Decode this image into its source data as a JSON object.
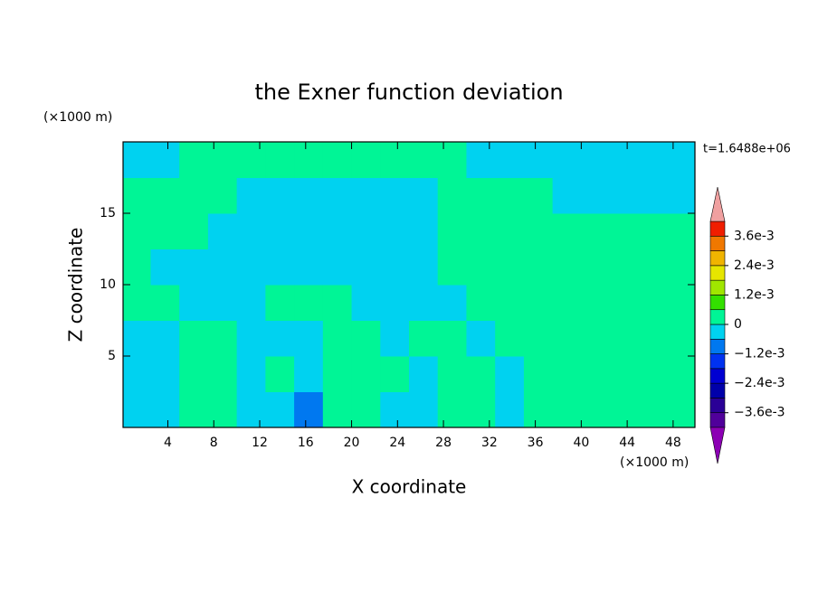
{
  "chart_data": {
    "type": "contour",
    "title": "the Exner function deviation",
    "x_label": "X coordinate",
    "y_label": "Z coordinate",
    "x_unit": "(×1000 m)",
    "y_unit": "(×1000 m)",
    "time_label": "t=1.6488e+06",
    "xlim": [
      0.1,
      49.9
    ],
    "ylim": [
      0,
      20
    ],
    "xticks": [
      4,
      8,
      12,
      16,
      20,
      24,
      28,
      32,
      36,
      40,
      44,
      48
    ],
    "yticks": [
      5,
      10,
      15
    ],
    "x": [
      1.25,
      3.75,
      6.25,
      8.75,
      11.25,
      13.75,
      16.25,
      18.75,
      21.25,
      23.75,
      26.25,
      28.75,
      31.25,
      33.75,
      36.25,
      38.75,
      41.25,
      43.75,
      46.25,
      48.75
    ],
    "z": [
      1.25,
      3.75,
      6.25,
      8.75,
      11.25,
      13.75,
      16.25,
      18.75
    ],
    "values": [
      [
        -0.0003,
        -0.0003,
        0.0003,
        0.0003,
        -0.0003,
        -0.0003,
        -0.0009,
        0.0003,
        0.0003,
        -0.0003,
        -0.0003,
        0.0003,
        0.0003,
        -0.0003,
        0.0003,
        0.0003,
        0.0003,
        0.0003,
        0.0003,
        0.0003
      ],
      [
        -0.0003,
        -0.0003,
        0.0003,
        0.0003,
        -0.0003,
        0.0003,
        -0.0003,
        0.0003,
        0.0003,
        0.0003,
        -0.0003,
        0.0003,
        0.0003,
        -0.0003,
        0.0003,
        0.0003,
        0.0003,
        0.0003,
        0.0003,
        0.0003
      ],
      [
        -0.0003,
        -0.0003,
        0.0003,
        0.0003,
        -0.0003,
        -0.0003,
        -0.0003,
        0.0003,
        0.0003,
        -0.0003,
        0.0003,
        0.0003,
        -0.0003,
        0.0003,
        0.0003,
        0.0003,
        0.0003,
        0.0003,
        0.0003,
        0.0003
      ],
      [
        0.0003,
        0.0003,
        -0.0003,
        -0.0003,
        -0.0003,
        0.0003,
        0.0003,
        0.0003,
        -0.0003,
        -0.0003,
        -0.0003,
        -0.0003,
        0.0003,
        0.0003,
        0.0003,
        0.0003,
        0.0003,
        0.0003,
        0.0003,
        0.0003
      ],
      [
        0.0003,
        -0.0003,
        -0.0003,
        -0.0003,
        -0.0003,
        -0.0003,
        -0.0003,
        -0.0003,
        -0.0003,
        -0.0003,
        -0.0003,
        0.0003,
        0.0003,
        0.0003,
        0.0003,
        0.0003,
        0.0003,
        0.0003,
        0.0003,
        0.0003
      ],
      [
        0.0003,
        0.0003,
        0.0003,
        -0.0003,
        -0.0003,
        -0.0003,
        -0.0003,
        -0.0003,
        -0.0003,
        -0.0003,
        -0.0003,
        0.0003,
        0.0003,
        0.0003,
        0.0003,
        0.0003,
        0.0003,
        0.0003,
        0.0003,
        0.0003
      ],
      [
        0.0003,
        0.0003,
        0.0003,
        0.0003,
        -0.0003,
        -0.0003,
        -0.0003,
        -0.0003,
        -0.0003,
        -0.0003,
        -0.0003,
        0.0003,
        0.0003,
        0.0003,
        0.0003,
        -0.0003,
        -0.0003,
        -0.0003,
        -0.0003,
        -0.0003
      ],
      [
        -0.0003,
        -0.0003,
        0.0003,
        0.0003,
        0.0003,
        0.0003,
        0.0003,
        0.0003,
        0.0003,
        0.0003,
        0.0003,
        0.0003,
        -0.0003,
        -0.0003,
        -0.0003,
        -0.0003,
        -0.0003,
        -0.0003,
        -0.0003,
        -0.0003
      ]
    ],
    "colorbar": {
      "levels": [
        -0.0042,
        -0.0036,
        -0.003,
        -0.0024,
        -0.0018,
        -0.0012,
        -0.0006,
        0,
        0.0006,
        0.0012,
        0.0018,
        0.0024,
        0.003,
        0.0036,
        0.0042
      ],
      "colors": [
        "#50009b",
        "#2a0096",
        "#0000aa",
        "#0000d2",
        "#0032f0",
        "#0078f0",
        "#00d2f0",
        "#00f596",
        "#33e000",
        "#a0e600",
        "#e6e600",
        "#f0b400",
        "#f07800",
        "#f01e00"
      ],
      "under_color": "#8c00b4",
      "over_color": "#f0a0a0",
      "ticks": [
        {
          "value": 0.0036,
          "label": "3.6e-3"
        },
        {
          "value": 0.0024,
          "label": "2.4e-3"
        },
        {
          "value": 0.0012,
          "label": "1.2e-3"
        },
        0,
        {
          "value": -0.0012,
          "label": "−1.2e-3"
        },
        {
          "value": -0.0024,
          "label": "−2.4e-3"
        },
        {
          "value": -0.0036,
          "label": "−3.6e-3"
        }
      ]
    }
  }
}
